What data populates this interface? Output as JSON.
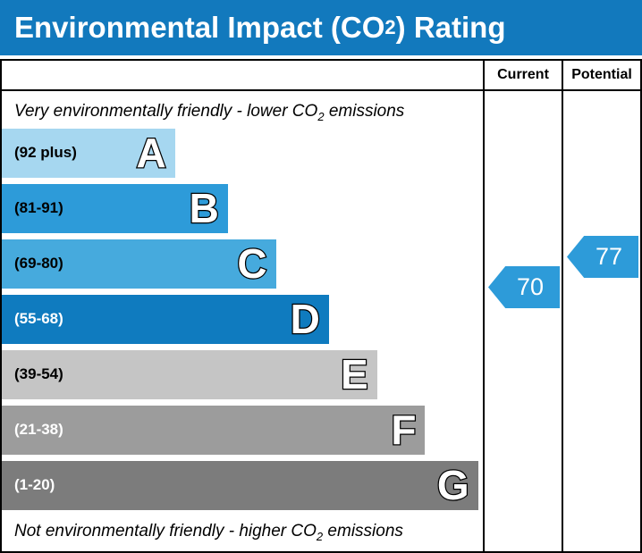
{
  "title": {
    "pre": "Environmental Impact (CO",
    "sub": "2",
    "post": ") Rating"
  },
  "header": {
    "current": "Current",
    "potential": "Potential"
  },
  "top_note": {
    "pre": "Very environmentally friendly - lower CO",
    "sub": "2",
    "post": " emissions"
  },
  "bottom_note": {
    "pre": "Not environmentally friendly - higher CO",
    "sub": "2",
    "post": " emissions"
  },
  "bands": [
    {
      "letter": "A",
      "range": "(92 plus)",
      "color": "#a6d7f0",
      "text_color": "#000000",
      "width": "36%"
    },
    {
      "letter": "B",
      "range": "(81-91)",
      "color": "#2d9bd9",
      "text_color": "#000000",
      "width": "47%"
    },
    {
      "letter": "C",
      "range": "(69-80)",
      "color": "#46aadd",
      "text_color": "#000000",
      "width": "57%"
    },
    {
      "letter": "D",
      "range": "(55-68)",
      "color": "#0f7bbf",
      "text_color": "#ffffff",
      "width": "68%"
    },
    {
      "letter": "E",
      "range": "(39-54)",
      "color": "#c5c5c5",
      "text_color": "#000000",
      "width": "78%"
    },
    {
      "letter": "F",
      "range": "(21-38)",
      "color": "#9c9c9c",
      "text_color": "#ffffff",
      "width": "88%"
    },
    {
      "letter": "G",
      "range": "(1-20)",
      "color": "#7c7c7c",
      "text_color": "#ffffff",
      "width": "99%"
    }
  ],
  "current": {
    "value": "70",
    "color": "#2d9bd9",
    "band": "C"
  },
  "potential": {
    "value": "77",
    "color": "#2d9bd9",
    "band": "C"
  },
  "colors": {
    "title_bar": "#1279bd",
    "border": "#000000"
  },
  "chart_data": {
    "type": "bar",
    "orientation": "horizontal",
    "title": "Environmental Impact (CO2) Rating",
    "categories": [
      "A",
      "B",
      "C",
      "D",
      "E",
      "F",
      "G"
    ],
    "ranges": [
      "92 plus",
      "81-91",
      "69-80",
      "55-68",
      "39-54",
      "21-38",
      "1-20"
    ],
    "bar_relative_widths_pct": [
      36,
      47,
      57,
      68,
      78,
      88,
      99
    ],
    "series": [
      {
        "name": "Current",
        "values": [
          70
        ],
        "band": "C"
      },
      {
        "name": "Potential",
        "values": [
          77
        ],
        "band": "C"
      }
    ],
    "top_annotation": "Very environmentally friendly - lower CO2 emissions",
    "bottom_annotation": "Not environmentally friendly - higher CO2 emissions",
    "legend_position": "none",
    "grid": false
  }
}
